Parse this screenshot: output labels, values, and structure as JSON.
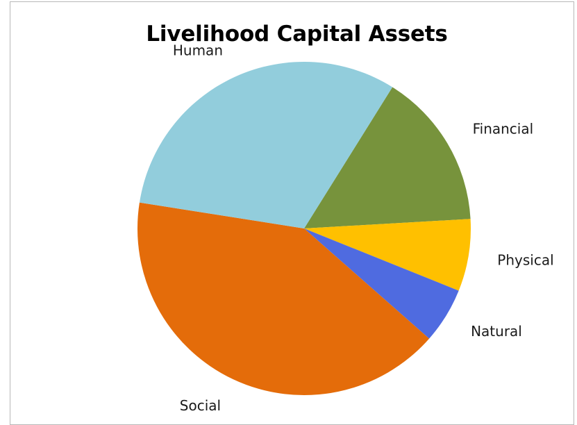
{
  "chart_data": {
    "type": "pie",
    "title": "Livelihood Capital Assets",
    "categories": [
      "Financial",
      "Physical",
      "Natural",
      "Social",
      "Human"
    ],
    "values": [
      15.2,
      7.0,
      5.4,
      41.0,
      31.4
    ],
    "colors": [
      "#77933c",
      "#ffc000",
      "#4f6be0",
      "#e46c0a",
      "#92cddc"
    ],
    "legend": "none",
    "start_angle_deg": -58
  }
}
